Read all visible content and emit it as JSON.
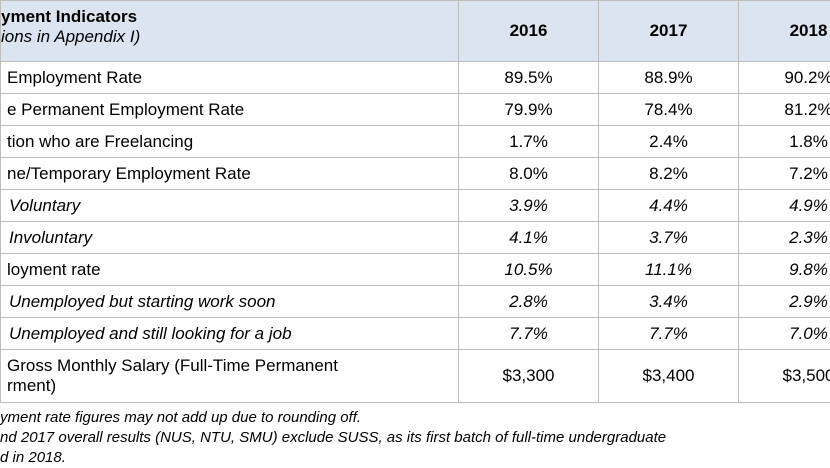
{
  "table": {
    "header": {
      "title": "yment Indicators",
      "subtitle": "ions in Appendix I)",
      "columns": [
        "2016",
        "2017",
        "2018"
      ]
    },
    "rows": [
      {
        "label": "Employment Rate",
        "values": [
          "89.5%",
          "88.9%",
          "90.2%"
        ],
        "style": "plain"
      },
      {
        "label": "e Permanent Employment Rate",
        "values": [
          "79.9%",
          "78.4%",
          "81.2%"
        ],
        "style": "plain"
      },
      {
        "label": "tion who are Freelancing",
        "values": [
          "1.7%",
          "2.4%",
          "1.8%"
        ],
        "style": "plain"
      },
      {
        "label": "ne/Temporary Employment Rate",
        "values": [
          "8.0%",
          "8.2%",
          "7.2%"
        ],
        "style": "plain"
      },
      {
        "label": "Voluntary",
        "values": [
          "3.9%",
          "4.4%",
          "4.9%"
        ],
        "style": "sub"
      },
      {
        "label": "Involuntary",
        "values": [
          "4.1%",
          "3.7%",
          "2.3%"
        ],
        "style": "sub"
      },
      {
        "label": "loyment rate",
        "values": [
          "10.5%",
          "11.1%",
          "9.8%"
        ],
        "style": "italic-values"
      },
      {
        "label": "Unemployed but starting work soon",
        "values": [
          "2.8%",
          "3.4%",
          "2.9%"
        ],
        "style": "sub"
      },
      {
        "label": "Unemployed and still looking for a job",
        "values": [
          "7.7%",
          "7.7%",
          "7.0%"
        ],
        "style": "sub"
      },
      {
        "label": "Gross Monthly Salary (Full-Time Permanent",
        "label2": "rment)",
        "values": [
          "$3,300",
          "$3,400",
          "$3,500"
        ],
        "style": "tall"
      }
    ]
  },
  "notes": [
    "yment rate figures may not add up due to rounding off.",
    "nd 2017 overall results (NUS, NTU, SMU) exclude SUSS, as its first batch of full-time undergraduate",
    "d in 2018."
  ]
}
